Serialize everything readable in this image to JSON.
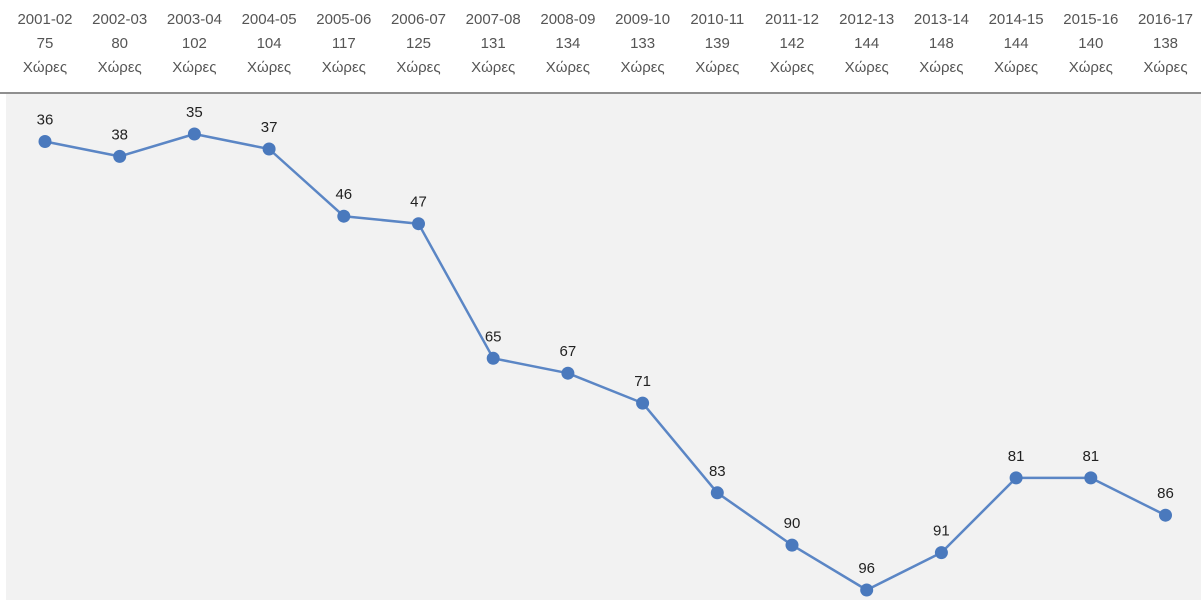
{
  "chart_data": {
    "type": "line",
    "categories": [
      "2001-02",
      "2002-03",
      "2003-04",
      "2004-05",
      "2005-06",
      "2006-07",
      "2007-08",
      "2008-09",
      "2009-10",
      "2010-11",
      "2011-12",
      "2012-13",
      "2013-14",
      "2014-15",
      "2015-16",
      "2016-17"
    ],
    "country_counts": [
      "75",
      "80",
      "102",
      "104",
      "117",
      "125",
      "131",
      "134",
      "133",
      "139",
      "142",
      "144",
      "148",
      "144",
      "140",
      "138"
    ],
    "unit_label": "Χώρες",
    "series": [
      {
        "values": [
          36,
          38,
          35,
          37,
          46,
          47,
          65,
          67,
          71,
          83,
          90,
          96,
          91,
          81,
          81,
          86
        ]
      }
    ],
    "y_axis": "inverted",
    "ylim": [
      35,
      96
    ],
    "grid": false,
    "legend": "none",
    "colors": {
      "line": "#5b86c5",
      "marker": "#4a79bd",
      "plot_background": "#f2f2f2",
      "header_text": "#555555",
      "label_text": "#222222"
    }
  }
}
